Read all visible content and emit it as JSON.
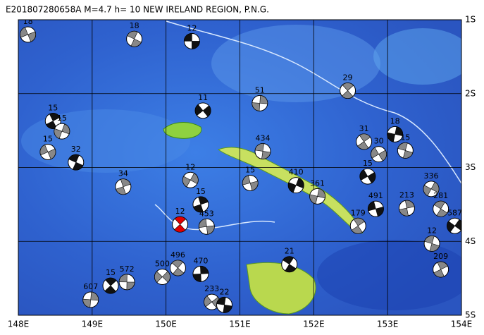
{
  "header": {
    "title": "E201807280658A M=4.7 h= 10 NEW IRELAND REGION, P.N.G."
  },
  "map": {
    "lonlim": [
      148,
      154
    ],
    "latlim": [
      -1,
      -5
    ],
    "lon_ticks": [
      {
        "value": 148,
        "label": "148E"
      },
      {
        "value": 149,
        "label": "149E"
      },
      {
        "value": 150,
        "label": "150E"
      },
      {
        "value": 151,
        "label": "151E"
      },
      {
        "value": 152,
        "label": "152E"
      },
      {
        "value": 153,
        "label": "153E"
      },
      {
        "value": 154,
        "label": "154E"
      }
    ],
    "lat_ticks": [
      {
        "value": -1,
        "label": "1S"
      },
      {
        "value": -2,
        "label": "2S"
      },
      {
        "value": -3,
        "label": "3S"
      },
      {
        "value": -4,
        "label": "4S"
      },
      {
        "value": -5,
        "label": "5S"
      }
    ],
    "main_event": {
      "label": "12",
      "lon": 150.19,
      "lat": -3.77
    },
    "events": [
      {
        "label": "12",
        "lon": 150.35,
        "lat": -1.29
      },
      {
        "label": "29",
        "lon": 152.46,
        "lat": -1.96
      },
      {
        "label": "51",
        "lon": 151.27,
        "lat": -2.13
      },
      {
        "label": "11",
        "lon": 150.5,
        "lat": -2.23
      },
      {
        "label": "434",
        "lon": 151.31,
        "lat": -2.78
      },
      {
        "label": "31",
        "lon": 152.68,
        "lat": -2.65
      },
      {
        "label": "18",
        "lon": 153.1,
        "lat": -2.55
      },
      {
        "label": "30",
        "lon": 152.88,
        "lat": -2.82
      },
      {
        "label": "15",
        "lon": 153.24,
        "lat": -2.77
      },
      {
        "label": "15",
        "lon": 148.47,
        "lat": -2.37
      },
      {
        "label": "15",
        "lon": 148.59,
        "lat": -2.51
      },
      {
        "label": "15",
        "lon": 148.4,
        "lat": -2.79
      },
      {
        "label": "32",
        "lon": 148.78,
        "lat": -2.93
      },
      {
        "label": "34",
        "lon": 149.42,
        "lat": -3.26
      },
      {
        "label": "336",
        "lon": 153.59,
        "lat": -3.29
      },
      {
        "label": "491",
        "lon": 152.84,
        "lat": -3.56
      },
      {
        "label": "281",
        "lon": 153.72,
        "lat": -3.56
      },
      {
        "label": "213",
        "lon": 153.26,
        "lat": -3.55
      },
      {
        "label": "587",
        "lon": 153.91,
        "lat": -3.79
      },
      {
        "label": "453",
        "lon": 150.55,
        "lat": -3.8
      },
      {
        "label": "496",
        "lon": 150.16,
        "lat": -4.36
      },
      {
        "label": "470",
        "lon": 150.47,
        "lat": -4.44
      },
      {
        "label": "500",
        "lon": 149.95,
        "lat": -4.48
      },
      {
        "label": "572",
        "lon": 149.47,
        "lat": -4.55
      },
      {
        "label": "15",
        "lon": 149.25,
        "lat": -4.6
      },
      {
        "label": "607",
        "lon": 148.98,
        "lat": -4.79
      },
      {
        "label": "233",
        "lon": 150.62,
        "lat": -4.82
      },
      {
        "label": "22",
        "lon": 150.79,
        "lat": -4.86
      },
      {
        "label": "179",
        "lon": 152.6,
        "lat": -3.79
      },
      {
        "label": "361",
        "lon": 152.05,
        "lat": -3.39
      },
      {
        "label": "15",
        "lon": 152.73,
        "lat": -3.12
      },
      {
        "label": "12",
        "lon": 153.6,
        "lat": -4.03
      },
      {
        "label": "209",
        "lon": 153.72,
        "lat": -4.38
      },
      {
        "label": "410",
        "lon": 151.76,
        "lat": -3.24
      },
      {
        "label": "18",
        "lon": 148.13,
        "lat": -1.2
      },
      {
        "label": "18",
        "lon": 149.57,
        "lat": -1.26
      },
      {
        "label": "15",
        "lon": 150.47,
        "lat": -3.5
      },
      {
        "label": "12",
        "lon": 150.33,
        "lat": -3.17
      },
      {
        "label": "15",
        "lon": 151.14,
        "lat": -3.21
      },
      {
        "label": "21",
        "lon": 151.67,
        "lat": -4.31
      }
    ]
  }
}
